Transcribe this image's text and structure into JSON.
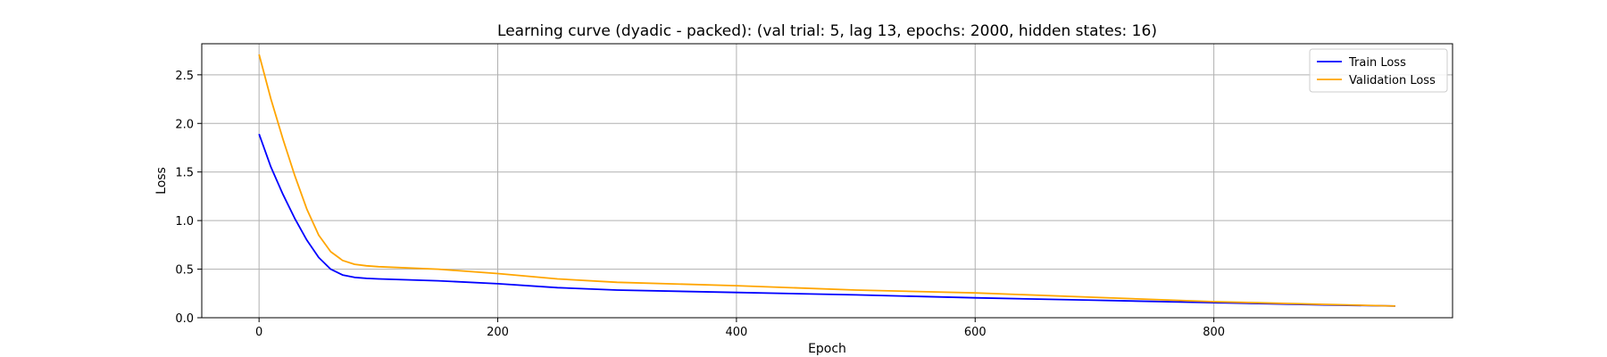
{
  "chart_data": {
    "type": "line",
    "title": "Learning curve (dyadic - packed): (val trial: 5, lag 13, epochs: 2000, hidden states: 16)",
    "xlabel": "Epoch",
    "ylabel": "Loss",
    "xlim": [
      -48,
      1000
    ],
    "ylim": [
      0,
      2.82
    ],
    "xticks": [
      0,
      200,
      400,
      600,
      800
    ],
    "yticks": [
      0.0,
      0.5,
      1.0,
      1.5,
      2.0,
      2.5
    ],
    "ytick_labels": [
      "0.0",
      "0.5",
      "1.0",
      "1.5",
      "2.0",
      "2.5"
    ],
    "grid": true,
    "legend_position": "top-right",
    "series": [
      {
        "name": "Train Loss",
        "color": "#0000ff",
        "x": [
          0,
          10,
          20,
          30,
          40,
          50,
          60,
          70,
          80,
          90,
          100,
          150,
          200,
          250,
          300,
          400,
          500,
          600,
          700,
          800,
          900,
          952
        ],
        "y": [
          1.89,
          1.55,
          1.27,
          1.02,
          0.8,
          0.62,
          0.5,
          0.44,
          0.415,
          0.405,
          0.4,
          0.38,
          0.35,
          0.31,
          0.285,
          0.26,
          0.235,
          0.205,
          0.18,
          0.155,
          0.13,
          0.12
        ]
      },
      {
        "name": "Validation Loss",
        "color": "#ffa500",
        "x": [
          0,
          10,
          20,
          30,
          40,
          50,
          60,
          70,
          80,
          90,
          100,
          150,
          200,
          250,
          300,
          400,
          500,
          600,
          700,
          800,
          900,
          952
        ],
        "y": [
          2.71,
          2.25,
          1.84,
          1.46,
          1.12,
          0.85,
          0.68,
          0.59,
          0.55,
          0.535,
          0.525,
          0.5,
          0.455,
          0.4,
          0.365,
          0.33,
          0.285,
          0.255,
          0.21,
          0.165,
          0.135,
          0.12
        ]
      }
    ]
  }
}
